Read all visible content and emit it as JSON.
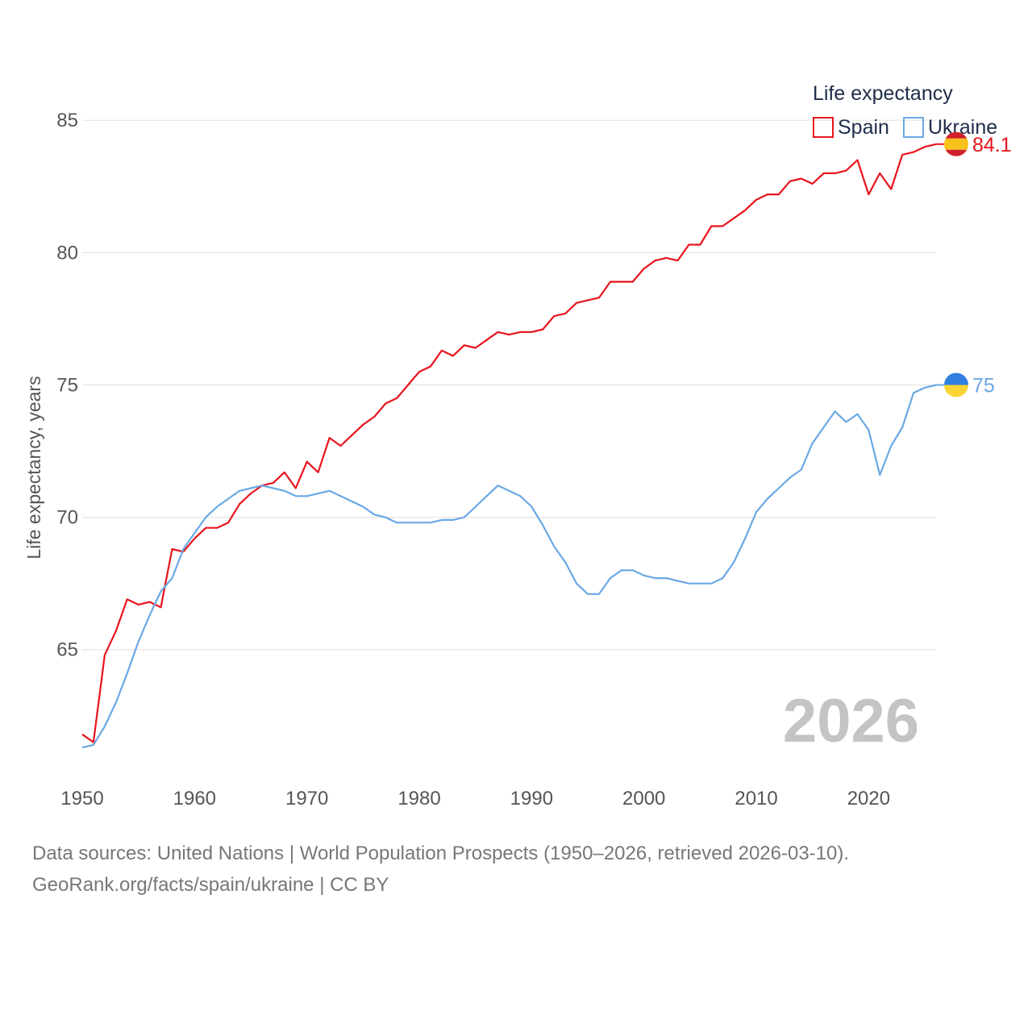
{
  "colors": {
    "spain": "#e8141c",
    "ukraine": "#6aa8e4",
    "grid": "#e6e6e6",
    "tick": "#555555"
  },
  "flags": {
    "spain": {
      "top": "#d0202c",
      "middle": "#f7c21b",
      "bottom": "#d0202c"
    },
    "ukraine": {
      "top": "#2f7fe0",
      "bottom": "#fcd535"
    }
  },
  "icons": {
    "spain_flag": "spain-flag-icon",
    "ukraine_flag": "ukraine-flag-icon"
  },
  "chart_data": {
    "type": "line",
    "title": "",
    "xlabel": "",
    "ylabel": "Life expectancy, years",
    "legend_title": "Life expectancy",
    "legend_position": "top-right",
    "grid": true,
    "xlim": [
      1950,
      2026
    ],
    "ylim": [
      60.3,
      86.5
    ],
    "x_ticks": [
      1950,
      1960,
      1970,
      1980,
      1990,
      2000,
      2010,
      2020
    ],
    "y_ticks": [
      65,
      70,
      75,
      80,
      85
    ],
    "year_label": "2026",
    "x": [
      1950,
      1951,
      1952,
      1953,
      1954,
      1955,
      1956,
      1957,
      1958,
      1959,
      1960,
      1961,
      1962,
      1963,
      1964,
      1965,
      1966,
      1967,
      1968,
      1969,
      1970,
      1971,
      1972,
      1973,
      1974,
      1975,
      1976,
      1977,
      1978,
      1979,
      1980,
      1981,
      1982,
      1983,
      1984,
      1985,
      1986,
      1987,
      1988,
      1989,
      1990,
      1991,
      1992,
      1993,
      1994,
      1995,
      1996,
      1997,
      1998,
      1999,
      2000,
      2001,
      2002,
      2003,
      2004,
      2005,
      2006,
      2007,
      2008,
      2009,
      2010,
      2011,
      2012,
      2013,
      2014,
      2015,
      2016,
      2017,
      2018,
      2019,
      2020,
      2021,
      2022,
      2023,
      2024,
      2025,
      2026
    ],
    "series": [
      {
        "name": "Spain",
        "end_label": "84.1",
        "values": [
          61.8,
          61.5,
          64.8,
          65.7,
          66.9,
          66.7,
          66.8,
          66.6,
          68.8,
          68.7,
          69.2,
          69.6,
          69.6,
          69.8,
          70.5,
          70.9,
          71.2,
          71.3,
          71.7,
          71.1,
          72.1,
          71.7,
          73.0,
          72.7,
          73.1,
          73.5,
          73.8,
          74.3,
          74.5,
          75.0,
          75.5,
          75.7,
          76.3,
          76.1,
          76.5,
          76.4,
          76.7,
          77.0,
          76.9,
          77.0,
          77.0,
          77.1,
          77.6,
          77.7,
          78.1,
          78.2,
          78.3,
          78.9,
          78.9,
          78.9,
          79.4,
          79.7,
          79.8,
          79.7,
          80.3,
          80.3,
          81.0,
          81.0,
          81.3,
          81.6,
          82.0,
          82.2,
          82.2,
          82.7,
          82.8,
          82.6,
          83.0,
          83.0,
          83.1,
          83.5,
          82.2,
          83.0,
          82.4,
          83.7,
          83.8,
          84.0,
          84.1
        ]
      },
      {
        "name": "Ukraine",
        "end_label": "75",
        "values": [
          61.3,
          61.4,
          62.1,
          63.0,
          64.1,
          65.3,
          66.3,
          67.2,
          67.7,
          68.8,
          69.4,
          70.0,
          70.4,
          70.7,
          71.0,
          71.1,
          71.2,
          71.1,
          71.0,
          70.8,
          70.8,
          70.9,
          71.0,
          70.8,
          70.6,
          70.4,
          70.1,
          70.0,
          69.8,
          69.8,
          69.8,
          69.8,
          69.9,
          69.9,
          70.0,
          70.4,
          70.8,
          71.2,
          71.0,
          70.8,
          70.4,
          69.7,
          68.9,
          68.3,
          67.5,
          67.1,
          67.1,
          67.7,
          68.0,
          68.0,
          67.8,
          67.7,
          67.7,
          67.6,
          67.5,
          67.5,
          67.5,
          67.7,
          68.3,
          69.2,
          70.2,
          70.7,
          71.1,
          71.5,
          71.8,
          72.8,
          73.4,
          74.0,
          73.6,
          73.9,
          73.3,
          71.6,
          72.7,
          73.4,
          74.7,
          74.9,
          75.0
        ]
      }
    ]
  },
  "footer": {
    "sources": "Data sources: United Nations | World Population Prospects (1950–2026, retrieved 2026-03-10).",
    "attribution": "GeoRank.org/facts/spain/ukraine | CC BY"
  }
}
